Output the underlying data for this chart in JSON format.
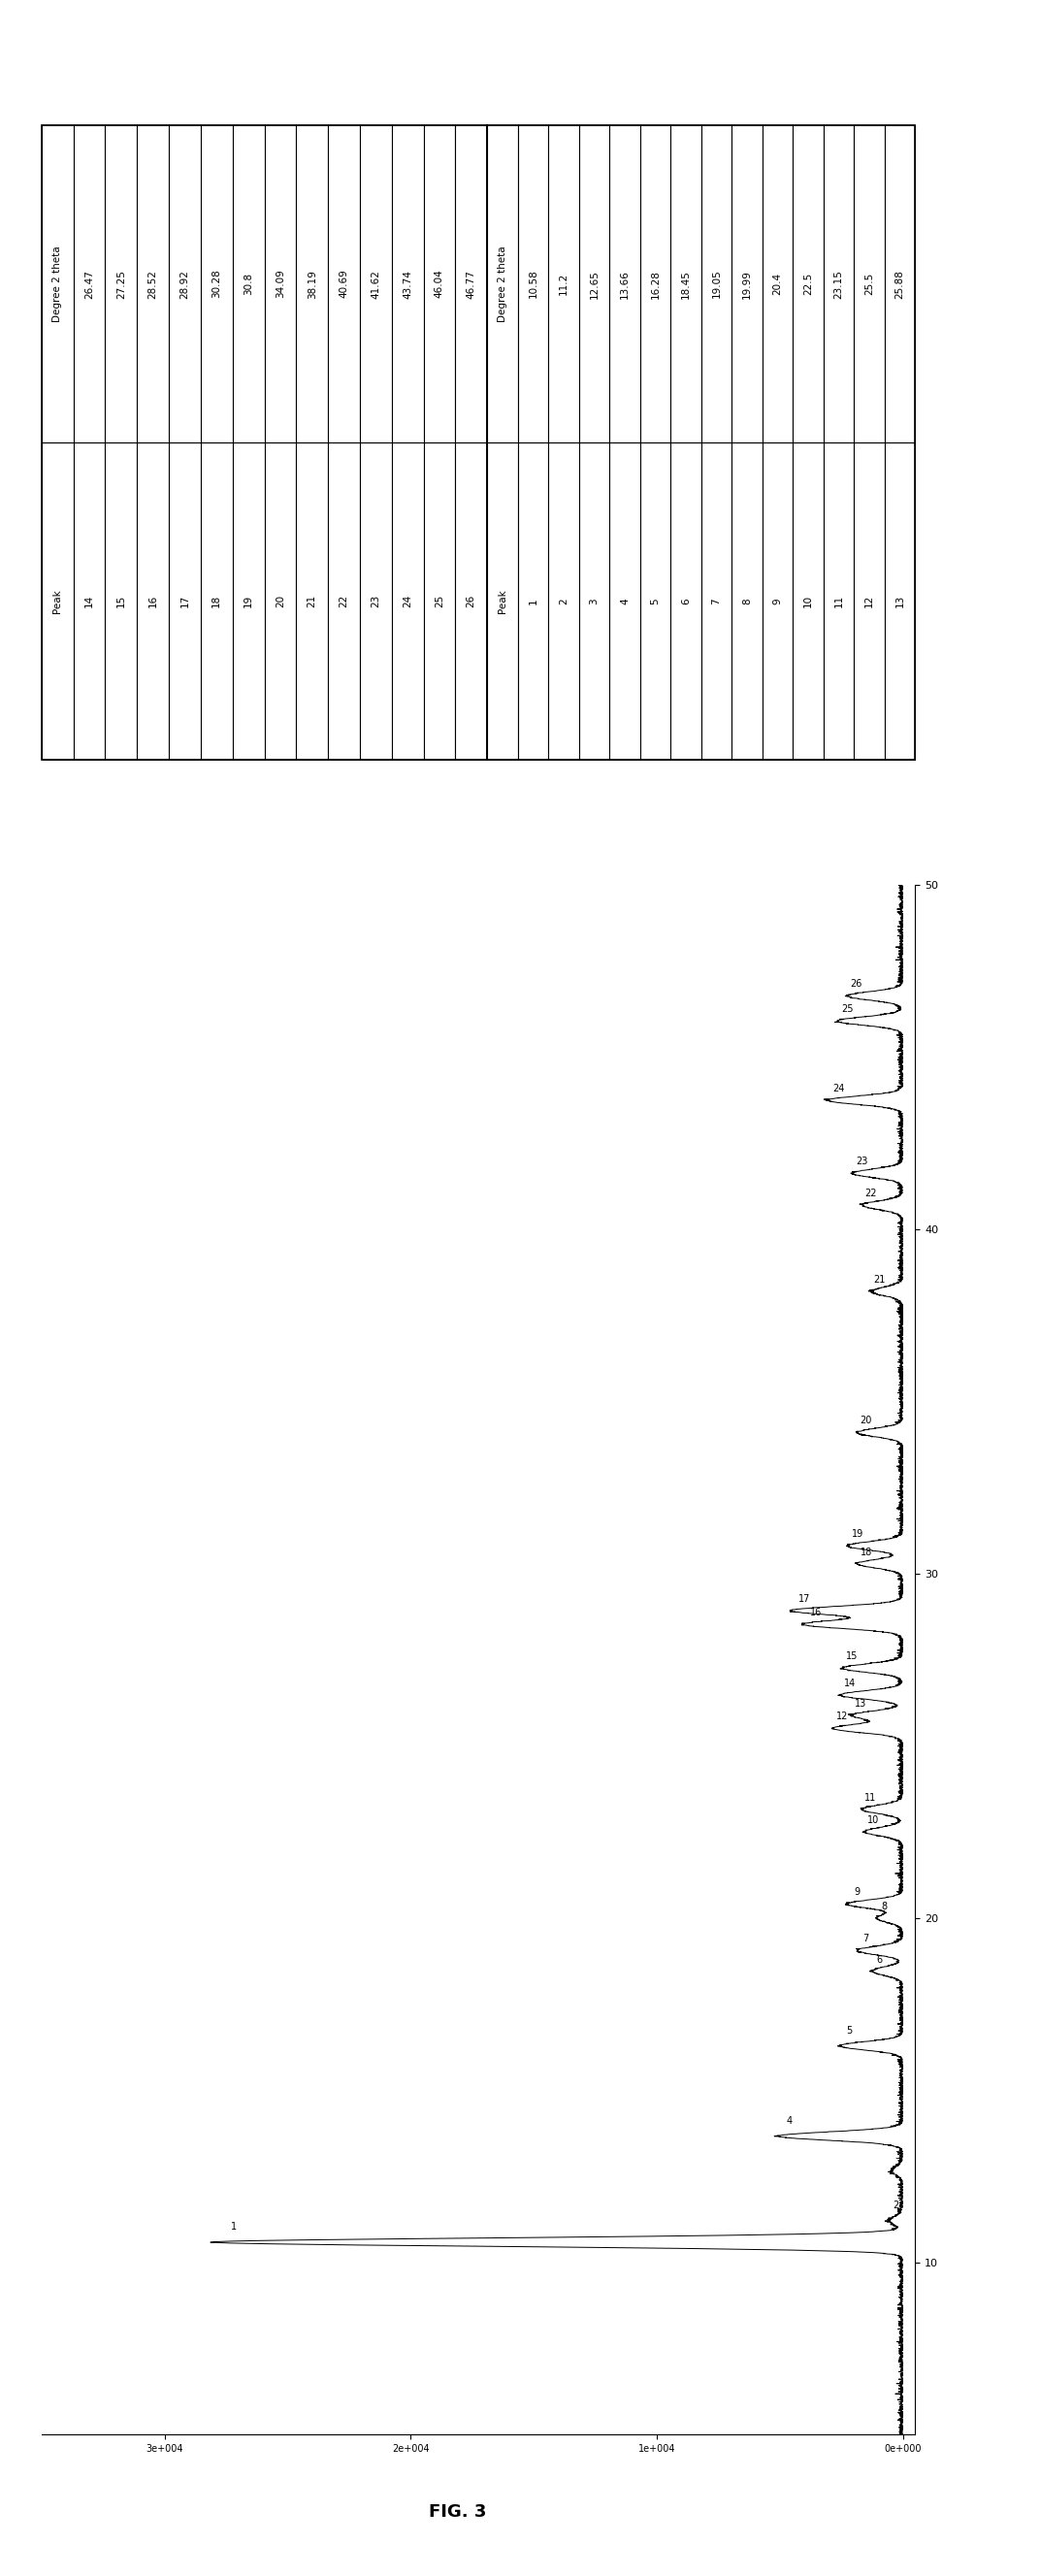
{
  "title": "FIG. 3",
  "peaks_table1": {
    "headers": [
      "Peak",
      "Degree 2 theta"
    ],
    "data": [
      [
        1,
        10.58
      ],
      [
        2,
        11.2
      ],
      [
        3,
        12.65
      ],
      [
        4,
        13.66
      ],
      [
        5,
        16.28
      ],
      [
        6,
        18.45
      ],
      [
        7,
        19.05
      ],
      [
        8,
        19.99
      ],
      [
        9,
        20.4
      ],
      [
        10,
        22.5
      ],
      [
        11,
        23.15
      ],
      [
        12,
        25.5
      ],
      [
        13,
        25.88
      ]
    ]
  },
  "peaks_table2": {
    "headers": [
      "Peak",
      "Degree 2 theta"
    ],
    "data": [
      [
        14,
        26.47
      ],
      [
        15,
        27.25
      ],
      [
        16,
        28.52
      ],
      [
        17,
        28.92
      ],
      [
        18,
        30.28
      ],
      [
        19,
        30.8
      ],
      [
        20,
        34.09
      ],
      [
        21,
        38.19
      ],
      [
        22,
        40.69
      ],
      [
        23,
        41.62
      ],
      [
        24,
        43.74
      ],
      [
        25,
        46.04
      ],
      [
        26,
        46.77
      ]
    ]
  },
  "xrd_peaks": [
    10.58,
    11.2,
    12.65,
    13.66,
    16.28,
    18.45,
    19.05,
    19.99,
    20.4,
    22.5,
    23.15,
    25.5,
    25.88,
    26.47,
    27.25,
    28.52,
    28.92,
    30.28,
    30.8,
    34.09,
    38.19,
    40.69,
    41.62,
    43.74,
    46.04,
    46.77
  ],
  "peak_labels": {
    "10.58": 1,
    "11.2": 2,
    "12.65": 3,
    "13.66": 4,
    "16.28": 5,
    "18.45": 6,
    "19.05": 7,
    "19.99": 8,
    "20.4": 9,
    "22.5": 10,
    "23.15": 11,
    "25.5": 12,
    "25.88": 13,
    "26.47": 14,
    "27.25": 15,
    "28.52": 16,
    "28.92": 17,
    "30.28": 18,
    "30.8": 19,
    "34.09": 20,
    "38.19": 21,
    "40.69": 22,
    "41.62": 23,
    "43.74": 24,
    "46.04": 25,
    "46.77": 26
  },
  "peak_heights": {
    "10.58": 28000,
    "11.2": 500,
    "12.65": 400,
    "13.66": 5000,
    "16.28": 2500,
    "18.45": 1200,
    "19.05": 1800,
    "19.99": 1000,
    "20.4": 2200,
    "22.5": 1500,
    "23.15": 1600,
    "25.5": 2800,
    "25.88": 2000,
    "26.47": 2500,
    "27.25": 2400,
    "28.52": 4000,
    "28.92": 4500,
    "30.28": 1800,
    "30.8": 2200,
    "34.09": 1800,
    "38.19": 1200,
    "40.69": 1600,
    "41.62": 2000,
    "43.74": 3000,
    "46.04": 2600,
    "46.77": 2200
  },
  "x_min": 5,
  "x_max": 50,
  "y_max": 35000,
  "x_ticks": [
    10,
    20,
    30,
    40,
    50
  ],
  "y_ticks_labels": [
    "0e+000",
    "1e+004",
    "2e+004",
    "3e+004"
  ],
  "y_ticks_vals": [
    0,
    10000,
    20000,
    30000
  ],
  "bg_color": "#ffffff",
  "line_color": "#000000",
  "table_border_color": "#000000"
}
